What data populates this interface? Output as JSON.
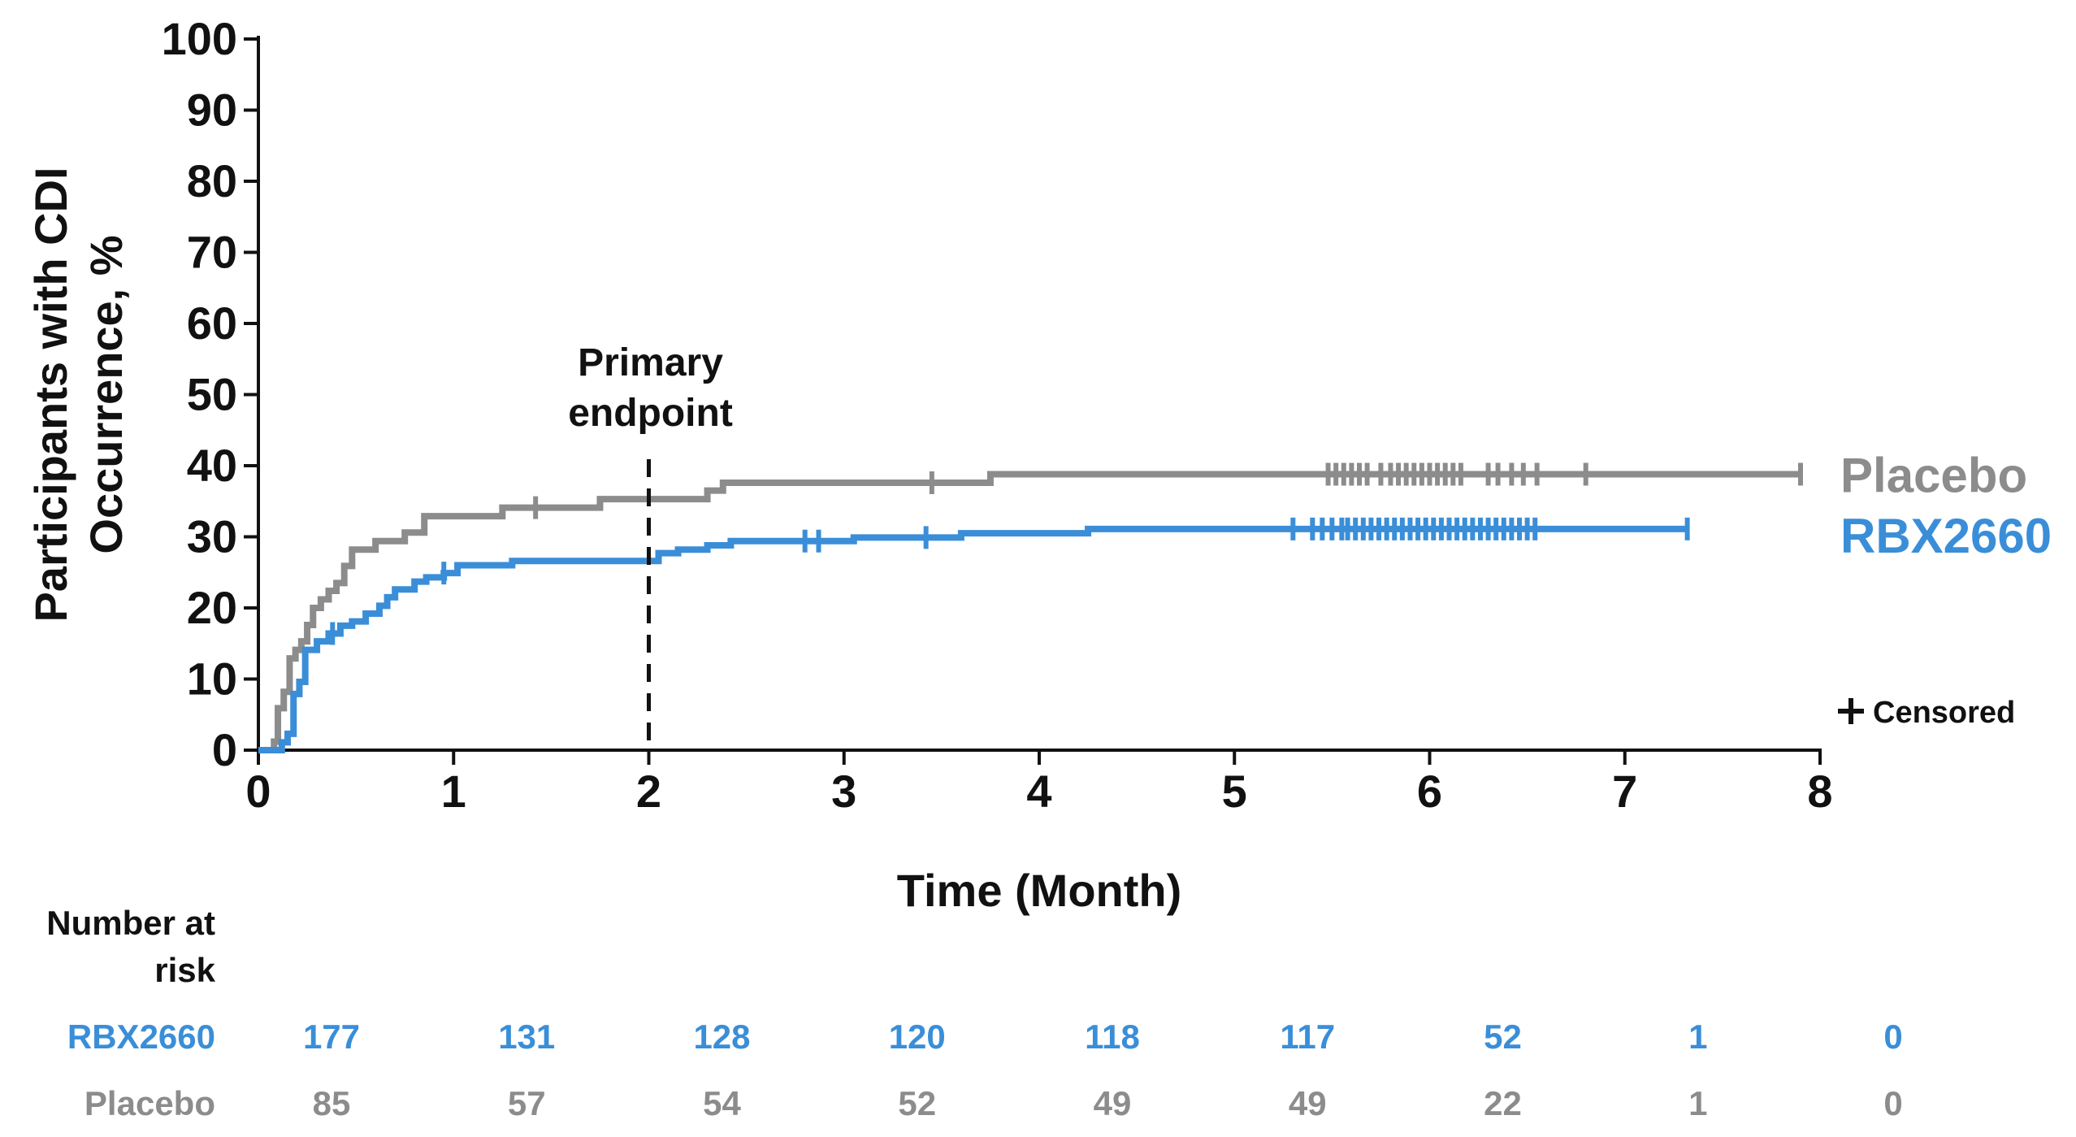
{
  "chart_data": {
    "type": "line",
    "title": "",
    "xlabel": "Time (Month)",
    "ylabel": "Participants with CDI Occurrence, %",
    "xlim": [
      0,
      8
    ],
    "ylim": [
      0,
      100
    ],
    "x_ticks": [
      "0",
      "1",
      "2",
      "3",
      "4",
      "5",
      "6",
      "7",
      "8"
    ],
    "y_ticks": [
      "0",
      "10",
      "20",
      "30",
      "40",
      "50",
      "60",
      "70",
      "80",
      "90",
      "100"
    ],
    "grid": false,
    "annotations": [
      {
        "text_lines": [
          "Primary",
          "endpoint"
        ],
        "x": 2,
        "style": "dashed-vertical-line"
      }
    ],
    "censor_legend": "Censored",
    "series": [
      {
        "name": "Placebo",
        "color": "#8c8c8c",
        "step_points": [
          [
            0,
            0
          ],
          [
            0.05,
            0
          ],
          [
            0.08,
            1.2
          ],
          [
            0.1,
            5.9
          ],
          [
            0.13,
            8.2
          ],
          [
            0.16,
            12.9
          ],
          [
            0.19,
            14.1
          ],
          [
            0.22,
            15.3
          ],
          [
            0.25,
            17.6
          ],
          [
            0.28,
            20
          ],
          [
            0.32,
            21.2
          ],
          [
            0.36,
            22.4
          ],
          [
            0.4,
            23.5
          ],
          [
            0.44,
            25.9
          ],
          [
            0.48,
            28.2
          ],
          [
            0.6,
            29.4
          ],
          [
            0.75,
            30.6
          ],
          [
            0.85,
            32.9
          ],
          [
            1.25,
            34.1
          ],
          [
            1.45,
            34.1
          ],
          [
            1.75,
            35.3
          ],
          [
            2.3,
            36.5
          ],
          [
            2.38,
            37.6
          ],
          [
            3.75,
            38.8
          ],
          [
            7.9,
            38.8
          ]
        ],
        "censored_x": [
          1.42,
          3.45,
          5.48,
          5.52,
          5.56,
          5.6,
          5.64,
          5.68,
          5.75,
          5.8,
          5.84,
          5.88,
          5.92,
          5.96,
          6.0,
          6.04,
          6.08,
          6.12,
          6.16,
          6.3,
          6.35,
          6.42,
          6.48,
          6.55,
          6.8,
          7.9
        ]
      },
      {
        "name": "RBX2660",
        "color": "#3a8ed8",
        "step_points": [
          [
            0,
            0
          ],
          [
            0.1,
            0
          ],
          [
            0.12,
            1.1
          ],
          [
            0.15,
            2.3
          ],
          [
            0.18,
            7.9
          ],
          [
            0.21,
            9.6
          ],
          [
            0.24,
            14.1
          ],
          [
            0.3,
            15.3
          ],
          [
            0.36,
            16.4
          ],
          [
            0.42,
            17.5
          ],
          [
            0.48,
            18.1
          ],
          [
            0.55,
            19.2
          ],
          [
            0.62,
            20.3
          ],
          [
            0.66,
            21.5
          ],
          [
            0.7,
            22.6
          ],
          [
            0.8,
            23.7
          ],
          [
            0.86,
            24.3
          ],
          [
            0.95,
            24.9
          ],
          [
            1.02,
            26
          ],
          [
            1.3,
            26.6
          ],
          [
            2.05,
            27.7
          ],
          [
            2.15,
            28.2
          ],
          [
            2.3,
            28.8
          ],
          [
            2.42,
            29.4
          ],
          [
            3.05,
            29.9
          ],
          [
            3.6,
            30.5
          ],
          [
            4.25,
            31.1
          ],
          [
            7.32,
            31.1
          ]
        ],
        "censored_x": [
          0.38,
          0.95,
          2.8,
          2.87,
          3.42,
          5.3,
          5.4,
          5.45,
          5.5,
          5.55,
          5.58,
          5.62,
          5.66,
          5.7,
          5.74,
          5.78,
          5.82,
          5.86,
          5.9,
          5.94,
          5.98,
          6.02,
          6.06,
          6.1,
          6.14,
          6.18,
          6.22,
          6.26,
          6.3,
          6.34,
          6.38,
          6.42,
          6.46,
          6.5,
          6.54,
          7.32
        ]
      }
    ],
    "risk_table": {
      "heading_lines": [
        "Number at",
        "risk"
      ],
      "times": [
        0,
        1,
        2,
        3,
        4,
        5,
        6,
        7,
        8
      ],
      "rows": [
        {
          "name": "RBX2660",
          "color": "#3a8ed8",
          "values": [
            "177",
            "131",
            "128",
            "120",
            "118",
            "117",
            "52",
            "1",
            "0"
          ]
        },
        {
          "name": "Placebo",
          "color": "#8c8c8c",
          "values": [
            "85",
            "57",
            "54",
            "52",
            "49",
            "49",
            "22",
            "1",
            "0"
          ]
        }
      ]
    }
  }
}
